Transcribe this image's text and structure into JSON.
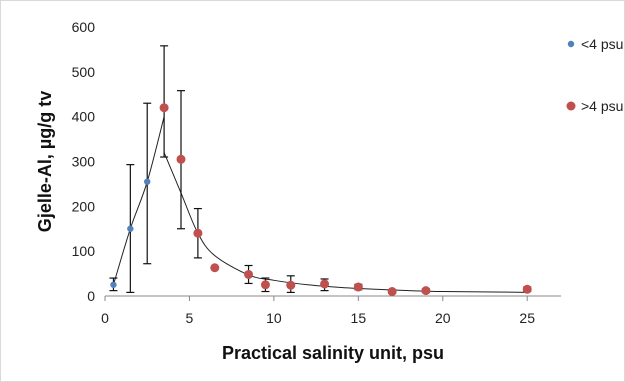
{
  "chart_data": {
    "type": "scatter",
    "xlabel": "Practical salinity unit, psu",
    "ylabel": "Gjelle-Al, µg/g tv",
    "xlim": [
      0,
      27
    ],
    "ylim": [
      0,
      600
    ],
    "x_ticks": [
      0,
      5,
      10,
      15,
      20,
      25
    ],
    "x_tick_labels": [
      "0",
      "5",
      "10",
      "15",
      "20",
      "25"
    ],
    "y_ticks": [
      0,
      100,
      200,
      300,
      400,
      500,
      600
    ],
    "y_tick_labels": [
      "0",
      "100",
      "200",
      "300",
      "400",
      "500",
      "600"
    ],
    "grid": false,
    "legend_position": "right",
    "series": [
      {
        "name": "<4 psu",
        "color": "#4f81bd",
        "points": [
          {
            "x": 0.5,
            "y": 25,
            "err_low": 12,
            "err_high": 40
          },
          {
            "x": 1.5,
            "y": 150,
            "err_low": 8,
            "err_high": 293
          },
          {
            "x": 2.5,
            "y": 255,
            "err_low": 72,
            "err_high": 430
          }
        ]
      },
      {
        "name": ">4 psu",
        "color": "#c0504d",
        "points": [
          {
            "x": 3.5,
            "y": 420,
            "err_low": 310,
            "err_high": 558
          },
          {
            "x": 4.5,
            "y": 305,
            "err_low": 150,
            "err_high": 458
          },
          {
            "x": 5.5,
            "y": 140,
            "err_low": 85,
            "err_high": 195
          },
          {
            "x": 6.5,
            "y": 63,
            "err_low": null,
            "err_high": null
          },
          {
            "x": 8.5,
            "y": 48,
            "err_low": 28,
            "err_high": 68
          },
          {
            "x": 9.5,
            "y": 25,
            "err_low": 10,
            "err_high": 40
          },
          {
            "x": 11,
            "y": 24,
            "err_low": 8,
            "err_high": 45
          },
          {
            "x": 13,
            "y": 27,
            "err_low": 12,
            "err_high": 38
          },
          {
            "x": 15,
            "y": 20,
            "err_low": 14,
            "err_high": 26
          },
          {
            "x": 17,
            "y": 10,
            "err_low": 6,
            "err_high": 14
          },
          {
            "x": 19,
            "y": 12,
            "err_low": 8,
            "err_high": 16
          },
          {
            "x": 25,
            "y": 15,
            "err_low": 10,
            "err_high": 20
          }
        ]
      }
    ],
    "trend_lines": [
      {
        "points": [
          [
            0.5,
            25
          ],
          [
            1.5,
            150
          ],
          [
            2.5,
            255
          ],
          [
            3.5,
            400
          ]
        ]
      },
      {
        "points": [
          [
            3.5,
            320
          ],
          [
            4.5,
            230
          ],
          [
            5.5,
            140
          ],
          [
            6.5,
            90
          ],
          [
            8.5,
            47
          ],
          [
            10,
            35
          ],
          [
            12,
            25
          ],
          [
            14,
            19
          ],
          [
            16,
            15
          ],
          [
            18,
            12
          ],
          [
            20,
            10
          ],
          [
            23,
            9
          ],
          [
            25,
            8
          ]
        ]
      }
    ]
  }
}
